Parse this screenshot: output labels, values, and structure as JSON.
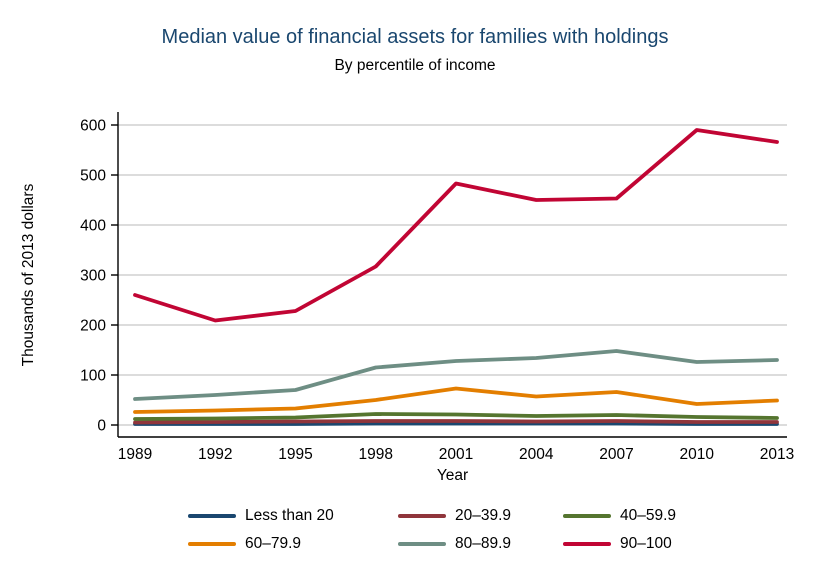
{
  "chart_data": {
    "type": "line",
    "title": "Median value of financial assets for families with holdings",
    "subtitle": "By percentile of income",
    "xlabel": "Year",
    "ylabel": "Thousands of 2013 dollars",
    "x": [
      1989,
      1992,
      1995,
      1998,
      2001,
      2004,
      2007,
      2010,
      2013
    ],
    "yticks": [
      0,
      100,
      200,
      300,
      400,
      500,
      600
    ],
    "ylim": [
      0,
      620
    ],
    "grid": "horizontal",
    "legend_position": "bottom",
    "series": [
      {
        "name": "Less than 20",
        "color": "#1a476f",
        "values": [
          2,
          2,
          2,
          3,
          3,
          3,
          3,
          2,
          2
        ]
      },
      {
        "name": "20–39.9",
        "color": "#90353b",
        "values": [
          5,
          6,
          7,
          8,
          8,
          7,
          8,
          6,
          6
        ]
      },
      {
        "name": "40–59.9",
        "color": "#55752f",
        "values": [
          12,
          13,
          15,
          22,
          21,
          18,
          20,
          16,
          14
        ]
      },
      {
        "name": "60–79.9",
        "color": "#e37e00",
        "values": [
          26,
          29,
          33,
          50,
          73,
          57,
          66,
          42,
          49
        ]
      },
      {
        "name": "80–89.9",
        "color": "#6e8e84",
        "values": [
          52,
          60,
          70,
          115,
          128,
          134,
          148,
          126,
          130
        ]
      },
      {
        "name": "90–100",
        "color": "#c10534",
        "values": [
          260,
          209,
          228,
          317,
          483,
          450,
          453,
          590,
          566
        ]
      }
    ]
  },
  "colors": {
    "title": "#1a476f",
    "grid": "#c8c8c8",
    "axis": "#000000",
    "background": "#ffffff"
  }
}
